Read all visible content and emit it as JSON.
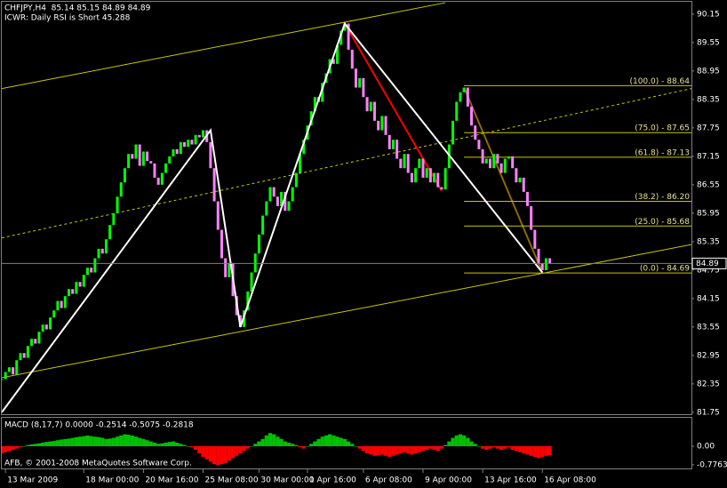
{
  "chart_data": {
    "type": "candlestick",
    "title": "CHFJPY,H4  85.14 85.15 84.89 84.89",
    "subtitle": "ICWR: Daily RSI is Short 45.288",
    "copyright": "AFB, © 2001-2008 MetaQuotes Software Corp.",
    "up_color": "#00ff00",
    "down_color": "#ff80ff",
    "closes": [
      82.45,
      82.6,
      82.7,
      82.55,
      82.85,
      83.0,
      82.9,
      83.15,
      83.3,
      83.2,
      83.45,
      83.6,
      83.5,
      83.75,
      83.9,
      84.1,
      83.95,
      84.2,
      84.35,
      84.25,
      84.5,
      84.4,
      84.65,
      84.8,
      84.7,
      85.0,
      85.2,
      85.1,
      85.4,
      85.7,
      85.95,
      86.3,
      86.6,
      86.9,
      87.2,
      87.1,
      87.4,
      86.95,
      87.25,
      87.05,
      87.0,
      86.7,
      86.55,
      86.8,
      87.0,
      87.15,
      87.3,
      87.2,
      87.45,
      87.35,
      87.5,
      87.4,
      87.6,
      87.55,
      87.7,
      87.45,
      86.9,
      86.2,
      85.6,
      85.0,
      84.6,
      84.9,
      84.2,
      83.8,
      83.55,
      83.9,
      84.3,
      84.7,
      85.1,
      85.5,
      85.9,
      86.2,
      86.5,
      86.3,
      86.1,
      86.4,
      86.0,
      86.2,
      86.5,
      86.8,
      87.2,
      87.5,
      87.8,
      88.1,
      88.4,
      88.3,
      88.7,
      88.9,
      89.2,
      89.1,
      89.5,
      89.8,
      89.95,
      89.4,
      89.0,
      88.6,
      88.8,
      88.4,
      88.1,
      88.3,
      87.9,
      87.7,
      88.0,
      87.6,
      87.3,
      87.5,
      87.1,
      86.9,
      87.2,
      86.8,
      86.6,
      86.9,
      87.1,
      86.7,
      86.9,
      86.6,
      86.8,
      86.5,
      86.45,
      86.9,
      87.4,
      87.9,
      88.3,
      88.5,
      88.6,
      88.2,
      87.8,
      87.5,
      87.3,
      87.0,
      87.1,
      86.9,
      87.2,
      87.0,
      86.8,
      87.1,
      87.15,
      86.9,
      86.6,
      86.7,
      86.4,
      86.1,
      85.6,
      85.2,
      84.9,
      84.75,
      85.0,
      84.89
    ],
    "xlim": [
      0,
      185
    ],
    "xticks": [
      {
        "value": 1,
        "label": "13 Mar 2009"
      },
      {
        "value": 22,
        "label": "18 Mar 00:00"
      },
      {
        "value": 38,
        "label": "20 Mar 16:00"
      },
      {
        "value": 54,
        "label": "25 Mar 08:00"
      },
      {
        "value": 69,
        "label": "30 Mar 00:00"
      },
      {
        "value": 82,
        "label": "1 Apr 16:00"
      },
      {
        "value": 97,
        "label": "6 Apr 08:00"
      },
      {
        "value": 113,
        "label": "9 Apr 00:00"
      },
      {
        "value": 129,
        "label": "13 Apr 16:00"
      },
      {
        "value": 145,
        "label": "16 Apr 08:00"
      }
    ],
    "ylim": [
      81.71,
      90.41
    ],
    "yticks": [
      90.15,
      89.55,
      88.95,
      88.35,
      87.75,
      87.15,
      86.55,
      85.95,
      85.35,
      84.75,
      84.15,
      83.55,
      82.95,
      82.35,
      81.75
    ],
    "last_price": 84.89,
    "zigzag": {
      "color": "#ffffff",
      "x": [
        0,
        56,
        64,
        92,
        145
      ],
      "values": [
        81.75,
        87.7,
        83.55,
        89.95,
        84.7
      ]
    },
    "trend_lines": [
      {
        "color": "#c8c800",
        "dashed": false,
        "x": [
          0,
          119
        ],
        "values": [
          88.58,
          90.39
        ]
      },
      {
        "color": "#c8c800",
        "dashed": false,
        "x": [
          0,
          185
        ],
        "values": [
          82.48,
          85.29
        ]
      },
      {
        "color": "#c8c800",
        "dashed": true,
        "x": [
          0,
          185
        ],
        "values": [
          85.43,
          88.58
        ]
      },
      {
        "color": "#ff0000",
        "dashed": false,
        "x": [
          92,
          118
        ],
        "values": [
          89.95,
          86.42
        ]
      },
      {
        "color": "#8b6b00",
        "dashed": false,
        "x": [
          124,
          145
        ],
        "values": [
          88.6,
          84.7
        ]
      }
    ],
    "fibonacci": {
      "color": "#c8c800",
      "start": 124,
      "levels": [
        {
          "value": 88.64,
          "label": "(100.0) - 88.64"
        },
        {
          "value": 87.65,
          "label": "(75.0) - 87.65"
        },
        {
          "value": 87.13,
          "label": "(61.8) - 87.13"
        },
        {
          "value": 86.2,
          "label": "(38.2) - 86.20"
        },
        {
          "value": 85.68,
          "label": "(25.0) - 85.68"
        },
        {
          "value": 84.69,
          "label": "(0.0) - 84.69"
        }
      ]
    },
    "macd": {
      "title": "MACD (8,17,7) 0.0000 -0.2514 -0.5075 -0.2818",
      "up_color": "#00c000",
      "down_color": "#ff0000",
      "ylim": [
        -0.93,
        1.19
      ],
      "yticks": [
        {
          "value": 0,
          "label": "0.00"
        },
        -0.7763
      ],
      "values": [
        -0.3,
        -0.25,
        -0.2,
        -0.15,
        -0.1,
        -0.05,
        0.0,
        0.05,
        0.08,
        0.1,
        0.12,
        0.15,
        0.18,
        0.2,
        0.22,
        0.25,
        0.28,
        0.3,
        0.32,
        0.35,
        0.38,
        0.4,
        0.42,
        0.45,
        0.42,
        0.4,
        0.38,
        0.35,
        0.3,
        0.32,
        0.35,
        0.4,
        0.45,
        0.5,
        0.48,
        0.45,
        0.4,
        0.35,
        0.3,
        0.25,
        0.2,
        0.15,
        0.1,
        0.12,
        0.15,
        0.18,
        0.2,
        0.15,
        0.1,
        0.05,
        0.0,
        -0.05,
        -0.15,
        -0.3,
        -0.45,
        -0.55,
        -0.65,
        -0.75,
        -0.8,
        -0.75,
        -0.7,
        -0.6,
        -0.5,
        -0.4,
        -0.3,
        -0.2,
        -0.1,
        0.0,
        0.1,
        0.2,
        0.3,
        0.45,
        0.55,
        0.5,
        0.4,
        0.3,
        0.2,
        0.15,
        0.1,
        0.05,
        -0.05,
        -0.1,
        0.0,
        0.1,
        0.2,
        0.3,
        0.4,
        0.45,
        0.5,
        0.45,
        0.4,
        0.35,
        0.3,
        0.2,
        0.1,
        0.0,
        -0.1,
        -0.2,
        -0.3,
        -0.35,
        -0.4,
        -0.38,
        -0.35,
        -0.4,
        -0.45,
        -0.4,
        -0.35,
        -0.3,
        -0.25,
        -0.3,
        -0.35,
        -0.3,
        -0.25,
        -0.2,
        -0.15,
        -0.1,
        -0.15,
        -0.2,
        -0.1,
        0.05,
        0.2,
        0.35,
        0.45,
        0.5,
        0.45,
        0.35,
        0.2,
        0.1,
        0.0,
        -0.1,
        -0.15,
        -0.1,
        -0.05,
        -0.1,
        -0.15,
        -0.1,
        -0.05,
        -0.15,
        -0.2,
        -0.25,
        -0.3,
        -0.35,
        -0.4,
        -0.45,
        -0.5,
        -0.45,
        -0.4,
        -0.38
      ]
    }
  }
}
